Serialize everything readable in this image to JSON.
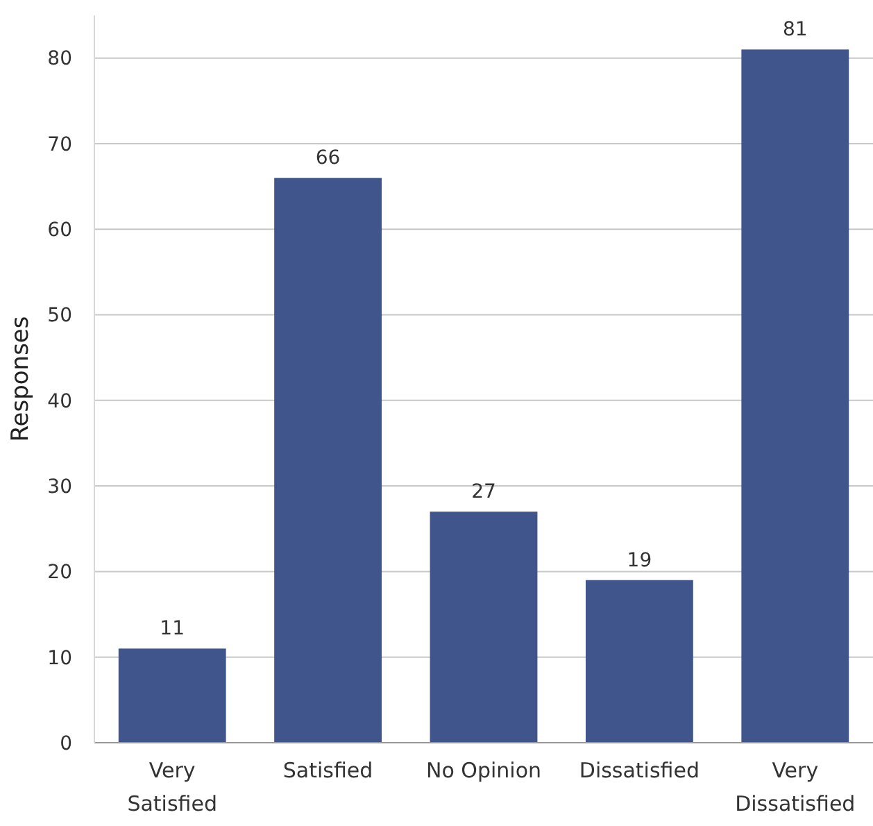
{
  "chart_data": {
    "type": "bar",
    "ylabel": "Responses",
    "categories": [
      "Very Satisfied",
      "Satisfied",
      "No Opinion",
      "Dissatisfied",
      "Very Dissatisfied"
    ],
    "values": [
      11,
      66,
      27,
      19,
      81
    ],
    "color": "#3f558c",
    "ylim": [
      0,
      85
    ],
    "yticks": [
      0,
      10,
      20,
      30,
      40,
      50,
      60,
      70,
      80
    ],
    "grid": "y",
    "data_labels": true
  }
}
